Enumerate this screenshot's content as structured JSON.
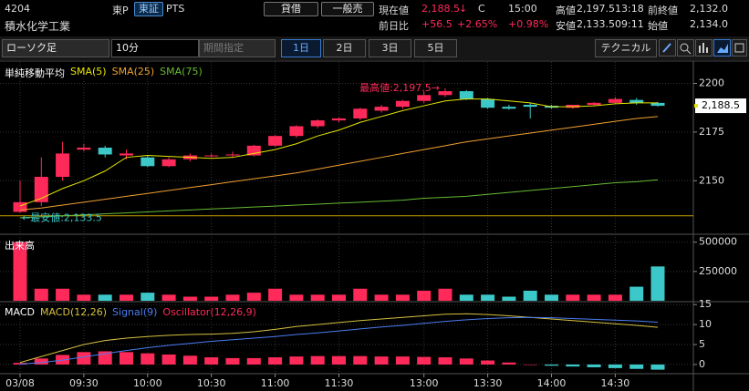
{
  "header": {
    "code": "4204",
    "name": "積水化学工業",
    "market": "東P",
    "exchange_tabs": [
      "東証",
      "PTS"
    ],
    "order_buttons": [
      "貸借",
      "一般売"
    ],
    "quote_row1": [
      "現在値",
      "2,188.5",
      "↓",
      "C",
      "15:00",
      "高値",
      "2,197.5",
      "13:18",
      "前終値",
      "2,132.0"
    ],
    "quote_row2": [
      "前日比",
      "+56.5",
      "+2.65%",
      "+0.98%",
      "安値",
      "2,133.5",
      "09:11",
      "始値",
      "2,134.0"
    ]
  },
  "toolbar": {
    "chart_kind": "ローソク足",
    "interval": "10分",
    "period": "期間指定",
    "days": [
      "1日",
      "2日",
      "3日",
      "5日"
    ],
    "technical": "テクニカル"
  },
  "chart_data": [
    {
      "type": "candlestick",
      "legend_title": "単純移動平均",
      "ylim": [
        2123,
        2211
      ],
      "yticks": [
        2150,
        2175,
        2200
      ],
      "up_color": "#ff2a5a",
      "down_color": "#3cc8c8",
      "open": [
        2134,
        2139,
        2152,
        2166,
        2167,
        2163,
        2162,
        2157.5,
        2161,
        2163,
        2163,
        2163,
        2168,
        2173,
        2178,
        2181,
        2182,
        2186,
        2188,
        2191,
        2194,
        2196,
        2192,
        2188,
        2189,
        2188.5,
        2187.5,
        2189,
        2190,
        2191.5,
        2190
      ],
      "high": [
        2150,
        2162,
        2170,
        2169,
        2168,
        2166,
        2163,
        2162,
        2164,
        2164,
        2165,
        2168.5,
        2173.5,
        2178.5,
        2181.5,
        2182.5,
        2187.5,
        2189,
        2191.5,
        2196,
        2197.5,
        2196.5,
        2192.5,
        2189,
        2190,
        2189,
        2189,
        2190.5,
        2193,
        2192.5,
        2190.5
      ],
      "low": [
        2133.5,
        2137,
        2150,
        2165,
        2162,
        2161,
        2157,
        2157,
        2160,
        2162,
        2162,
        2162.5,
        2167.5,
        2172,
        2177,
        2180,
        2181,
        2185,
        2187,
        2190,
        2193,
        2191.5,
        2187,
        2186.5,
        2182,
        2187,
        2187,
        2188.5,
        2189.5,
        2189,
        2188
      ],
      "close": [
        2139,
        2152,
        2164,
        2167,
        2163.5,
        2164,
        2157.5,
        2161,
        2163,
        2163,
        2163.5,
        2168,
        2173,
        2178,
        2181,
        2182,
        2187,
        2188,
        2191,
        2194,
        2196,
        2192,
        2187.5,
        2187,
        2188,
        2187.5,
        2189,
        2190,
        2192,
        2190,
        2188.5
      ],
      "series": [
        {
          "name": "SMA(5)",
          "color": "#e6e600",
          "values": [
            2137,
            2141,
            2146,
            2150,
            2155,
            2162,
            2163,
            2162.5,
            2162,
            2161.5,
            2162,
            2164,
            2166,
            2169,
            2173,
            2176,
            2180,
            2183,
            2186,
            2188.5,
            2191,
            2192,
            2192,
            2191,
            2190,
            2188,
            2188,
            2188.5,
            2189.5,
            2190,
            2190
          ]
        },
        {
          "name": "SMA(25)",
          "color": "#f0a030",
          "values": [
            2135,
            2136,
            2137.5,
            2139,
            2140.5,
            2142,
            2143.5,
            2145,
            2146.5,
            2148,
            2149.5,
            2151,
            2152.5,
            2154,
            2156,
            2158,
            2160,
            2162,
            2164,
            2166,
            2168,
            2170,
            2171.5,
            2173,
            2174.5,
            2176,
            2177.5,
            2179,
            2180.5,
            2182,
            2183
          ]
        },
        {
          "name": "SMA(75)",
          "color": "#66bb33",
          "values": [
            2131,
            2131.5,
            2132,
            2132.5,
            2133,
            2133.5,
            2134,
            2134.5,
            2135,
            2135.5,
            2136,
            2136.5,
            2137,
            2137.5,
            2138,
            2138.5,
            2139,
            2139.5,
            2140,
            2141,
            2141.5,
            2142,
            2143,
            2144,
            2145,
            2146,
            2147,
            2148,
            2149,
            2149.5,
            2150.5
          ]
        }
      ],
      "reference_line": 2132,
      "reference_color": "#c8a000",
      "current_price": {
        "value": 2188.5,
        "label": "2,188.5"
      },
      "annotations": [
        "最高値:2,197.5→",
        "←最安値:2,133.5"
      ]
    },
    {
      "type": "bar",
      "title": "出来高",
      "ylim": [
        0,
        560000
      ],
      "yticks": [
        250000,
        500000
      ],
      "values": [
        500000,
        103000,
        103000,
        52000,
        52000,
        52000,
        69000,
        52000,
        35000,
        35000,
        52000,
        69000,
        103000,
        52000,
        52000,
        52000,
        103000,
        52000,
        52000,
        86000,
        103000,
        52000,
        52000,
        35000,
        86000,
        52000,
        52000,
        52000,
        52000,
        120000,
        293000
      ]
    },
    {
      "type": "macd",
      "title": "MACD",
      "ylim": [
        -2.3,
        15.5
      ],
      "yticks": [
        0,
        5,
        10,
        15
      ],
      "categories": [
        "03/08",
        null,
        null,
        "09:30",
        null,
        null,
        "10:00",
        null,
        null,
        "10:30",
        null,
        null,
        "11:00",
        null,
        null,
        "11:30",
        null,
        null,
        null,
        "13:00",
        null,
        null,
        "13:30",
        null,
        null,
        "14:00",
        null,
        null,
        "14:30",
        null,
        null
      ],
      "series": [
        {
          "name": "MACD(12,26)",
          "color": "#d4c040",
          "values": [
            0.5,
            2,
            3.5,
            5,
            6,
            6.6,
            7,
            7.3,
            7.5,
            7.6,
            7.8,
            8.2,
            8.8,
            9.5,
            10,
            10.5,
            11,
            11.4,
            11.8,
            12.2,
            12.6,
            12.7,
            12.5,
            12.2,
            11.8,
            11.4,
            11,
            10.6,
            10.2,
            9.8,
            9.3
          ]
        },
        {
          "name": "Signal(9)",
          "color": "#4a7cf0",
          "values": [
            0.1,
            0.5,
            1.1,
            1.9,
            2.7,
            3.5,
            4.2,
            4.8,
            5.3,
            5.8,
            6.2,
            6.6,
            7,
            7.5,
            7.9,
            8.4,
            8.9,
            9.4,
            9.8,
            10.3,
            10.8,
            11.2,
            11.5,
            11.7,
            11.8,
            11.7,
            11.5,
            11.3,
            11.1,
            10.9,
            10.6
          ]
        },
        {
          "name": "Oscillator(12,26,9)",
          "color": "#ff2a5a",
          "negative_color": "#3cc8c8",
          "values": [
            0.4,
            1.5,
            2.4,
            3.1,
            3.3,
            3.1,
            2.8,
            2.5,
            2.2,
            1.8,
            1.6,
            1.6,
            1.8,
            2,
            2.1,
            2.1,
            2.1,
            2,
            2,
            1.9,
            1.8,
            1.5,
            1,
            0.5,
            0,
            -0.3,
            -0.5,
            -0.7,
            -0.9,
            -1.1,
            -1.3
          ]
        }
      ]
    }
  ]
}
